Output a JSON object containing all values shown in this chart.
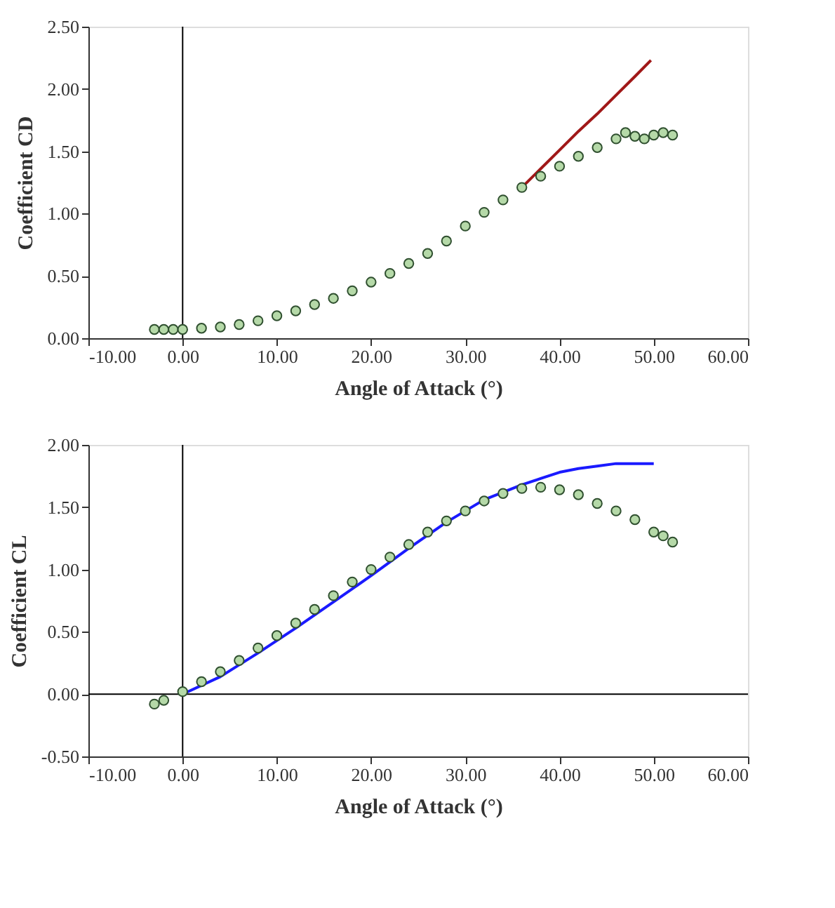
{
  "chart_data": [
    {
      "type": "scatter",
      "xlabel": "Angle of Attack (°)",
      "ylabel": "Coefficient CD",
      "xlim": [
        -10,
        60
      ],
      "xticks": [
        {
          "value": -10,
          "label": "-10.00"
        },
        {
          "value": 0,
          "label": "0.00"
        },
        {
          "value": 10,
          "label": "10.00"
        },
        {
          "value": 20,
          "label": "20.00"
        },
        {
          "value": 30,
          "label": "30.00"
        },
        {
          "value": 40,
          "label": "40.00"
        },
        {
          "value": 50,
          "label": "50.00"
        },
        {
          "value": 60,
          "label": "60.00"
        }
      ],
      "ylim": [
        0,
        2.5
      ],
      "yticks": [
        {
          "value": 0,
          "label": "0.00"
        },
        {
          "value": 0.5,
          "label": "0.50"
        },
        {
          "value": 1,
          "label": "1.00"
        },
        {
          "value": 1.5,
          "label": "1.50"
        },
        {
          "value": 2,
          "label": "2.00"
        },
        {
          "value": 2.5,
          "label": "2.50"
        }
      ],
      "grid": false,
      "ref_lines": [
        {
          "axis": "x",
          "value": 0,
          "color": "#000000"
        }
      ],
      "series": [
        {
          "type": "line",
          "line_style": "solid",
          "marker": "none",
          "color": "#a01818",
          "x": [
            36,
            38,
            40,
            42,
            44,
            46,
            48,
            49.7
          ],
          "values": [
            1.21,
            1.36,
            1.51,
            1.66,
            1.8,
            1.95,
            2.1,
            2.23
          ]
        },
        {
          "marker": "circle",
          "color": "#b5d9a8",
          "x": [
            -3,
            -2,
            -1,
            0,
            2,
            4,
            6,
            8,
            10,
            12,
            14,
            16,
            18,
            20,
            22,
            24,
            26,
            28,
            30,
            32,
            34,
            36,
            38,
            40,
            42,
            44,
            46,
            47,
            48,
            49,
            50,
            51,
            52
          ],
          "values": [
            0.07,
            0.07,
            0.07,
            0.07,
            0.08,
            0.09,
            0.11,
            0.14,
            0.18,
            0.22,
            0.27,
            0.32,
            0.38,
            0.45,
            0.52,
            0.6,
            0.68,
            0.78,
            0.9,
            1.01,
            1.11,
            1.21,
            1.3,
            1.38,
            1.46,
            1.53,
            1.6,
            1.65,
            1.62,
            1.6,
            1.63,
            1.65,
            1.63
          ]
        }
      ]
    },
    {
      "type": "scatter",
      "xlabel": "Angle of Attack (°)",
      "ylabel": "Coefficient CL",
      "xlim": [
        -10,
        60
      ],
      "xticks": [
        {
          "value": -10,
          "label": "-10.00"
        },
        {
          "value": 0,
          "label": "0.00"
        },
        {
          "value": 10,
          "label": "10.00"
        },
        {
          "value": 20,
          "label": "20.00"
        },
        {
          "value": 30,
          "label": "30.00"
        },
        {
          "value": 40,
          "label": "40.00"
        },
        {
          "value": 50,
          "label": "50.00"
        },
        {
          "value": 60,
          "label": "60.00"
        }
      ],
      "ylim": [
        -0.5,
        2
      ],
      "yticks": [
        {
          "value": -0.5,
          "label": "-0.50"
        },
        {
          "value": 0,
          "label": "0.00"
        },
        {
          "value": 0.5,
          "label": "0.50"
        },
        {
          "value": 1,
          "label": "1.00"
        },
        {
          "value": 1.5,
          "label": "1.50"
        },
        {
          "value": 2,
          "label": "2.00"
        }
      ],
      "grid": false,
      "ref_lines": [
        {
          "axis": "x",
          "value": 0,
          "color": "#000000"
        },
        {
          "axis": "y",
          "value": 0,
          "color": "#000000"
        }
      ],
      "series": [
        {
          "type": "line",
          "line_style": "solid",
          "marker": "none",
          "color": "#1a1aff",
          "x": [
            0,
            4,
            8,
            12,
            16,
            20,
            24,
            28,
            32,
            36,
            38,
            40,
            42,
            44,
            46,
            50
          ],
          "values": [
            0.0,
            0.14,
            0.33,
            0.53,
            0.74,
            0.95,
            1.17,
            1.38,
            1.56,
            1.68,
            1.73,
            1.78,
            1.81,
            1.83,
            1.85,
            1.85
          ]
        },
        {
          "marker": "circle",
          "color": "#b5d9a8",
          "x": [
            -3,
            -2,
            0,
            2,
            4,
            6,
            8,
            10,
            12,
            14,
            16,
            18,
            20,
            22,
            24,
            26,
            28,
            30,
            32,
            34,
            36,
            38,
            40,
            42,
            44,
            46,
            48,
            50,
            51,
            52
          ],
          "values": [
            -0.08,
            -0.05,
            0.02,
            0.1,
            0.18,
            0.27,
            0.37,
            0.47,
            0.57,
            0.68,
            0.79,
            0.9,
            1.0,
            1.1,
            1.2,
            1.3,
            1.39,
            1.47,
            1.55,
            1.61,
            1.65,
            1.66,
            1.64,
            1.6,
            1.53,
            1.47,
            1.4,
            1.3,
            1.27,
            1.22
          ]
        }
      ]
    }
  ]
}
